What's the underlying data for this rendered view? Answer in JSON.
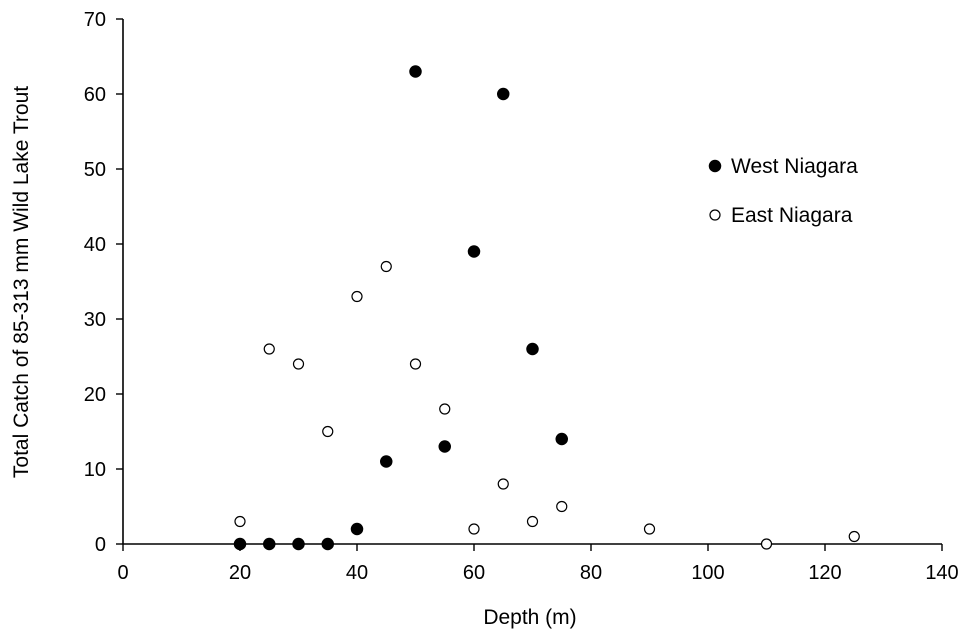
{
  "chart_data": {
    "type": "scatter",
    "title": "",
    "xlabel": "Depth (m)",
    "ylabel": "Total Catch of 85-313 mm Wild Lake Trout",
    "xlim": [
      0,
      140
    ],
    "ylim": [
      0,
      70
    ],
    "xticks": [
      0,
      20,
      40,
      60,
      80,
      100,
      120,
      140
    ],
    "yticks": [
      0,
      10,
      20,
      30,
      40,
      50,
      60,
      70
    ],
    "grid": false,
    "legend_position": "right",
    "series": [
      {
        "name": "West Niagara",
        "marker": "filled-circle",
        "color": "#000000",
        "points": [
          {
            "x": 20,
            "y": 0
          },
          {
            "x": 25,
            "y": 0
          },
          {
            "x": 30,
            "y": 0
          },
          {
            "x": 35,
            "y": 0
          },
          {
            "x": 40,
            "y": 2
          },
          {
            "x": 45,
            "y": 11
          },
          {
            "x": 50,
            "y": 63
          },
          {
            "x": 55,
            "y": 13
          },
          {
            "x": 60,
            "y": 39
          },
          {
            "x": 65,
            "y": 60
          },
          {
            "x": 70,
            "y": 26
          },
          {
            "x": 75,
            "y": 14
          }
        ]
      },
      {
        "name": "East Niagara",
        "marker": "open-circle",
        "color": "#000000",
        "points": [
          {
            "x": 20,
            "y": 3
          },
          {
            "x": 25,
            "y": 26
          },
          {
            "x": 30,
            "y": 24
          },
          {
            "x": 35,
            "y": 15
          },
          {
            "x": 40,
            "y": 33
          },
          {
            "x": 45,
            "y": 37
          },
          {
            "x": 50,
            "y": 24
          },
          {
            "x": 55,
            "y": 18
          },
          {
            "x": 60,
            "y": 2
          },
          {
            "x": 65,
            "y": 8
          },
          {
            "x": 70,
            "y": 3
          },
          {
            "x": 75,
            "y": 5
          },
          {
            "x": 90,
            "y": 2
          },
          {
            "x": 110,
            "y": 0
          },
          {
            "x": 125,
            "y": 1
          }
        ]
      }
    ]
  }
}
